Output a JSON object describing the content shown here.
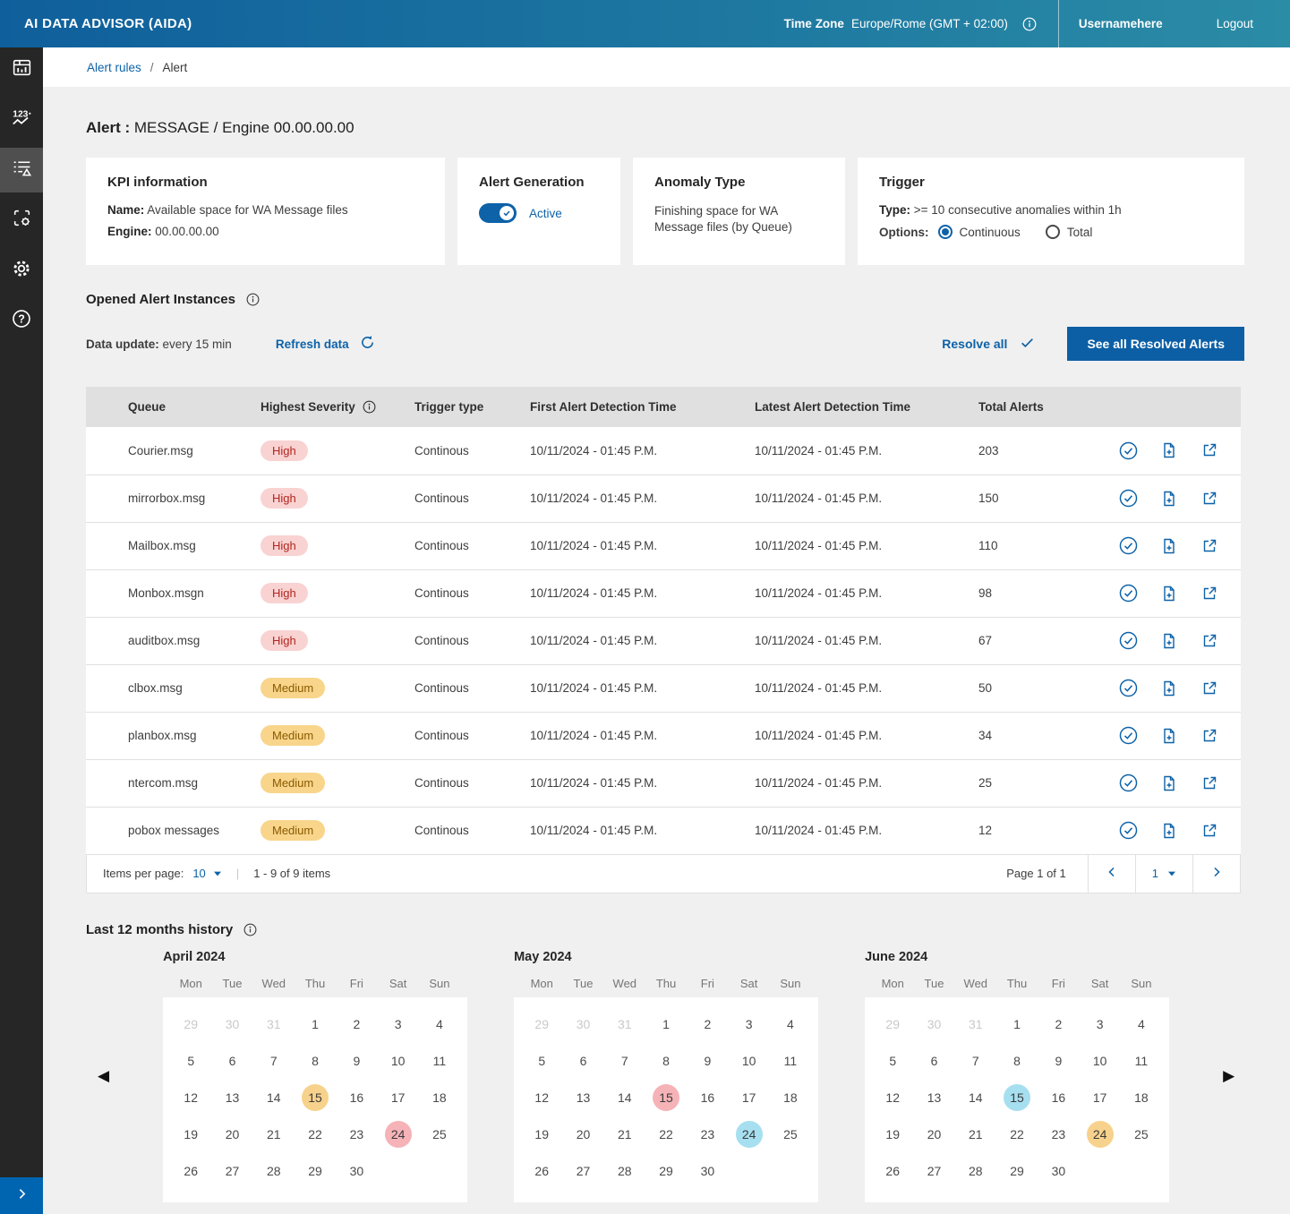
{
  "header": {
    "app_title": "AI DATA ADVISOR (AIDA)",
    "timezone_label": "Time Zone",
    "timezone_value": "Europe/Rome (GMT + 02:00)",
    "username": "Usernamehere",
    "logout_label": "Logout"
  },
  "sidebar": {
    "items": [
      {
        "name": "dashboard",
        "active": false
      },
      {
        "name": "kpi-trend",
        "active": false
      },
      {
        "name": "alert-rules",
        "active": true
      },
      {
        "name": "kpi-config",
        "active": false
      },
      {
        "name": "settings",
        "active": false
      },
      {
        "name": "help",
        "active": false
      }
    ]
  },
  "breadcrumb": {
    "parent": "Alert rules",
    "separator": "/",
    "current": "Alert"
  },
  "page": {
    "title_bold": "Alert :",
    "title_rest": "MESSAGE  / Engine 00.00.00.00"
  },
  "cards": {
    "kpi": {
      "title": "KPI information",
      "name_label": "Name:",
      "name_value": "Available space for WA Message files",
      "engine_label": "Engine:",
      "engine_value": "00.00.00.00"
    },
    "generation": {
      "title": "Alert Generation",
      "status_label": "Active"
    },
    "anomaly": {
      "title": "Anomaly Type",
      "description": "Finishing space for WA Message files (by Queue)"
    },
    "trigger": {
      "title": "Trigger",
      "type_label": "Type:",
      "type_value": ">=  10 consecutive anomalies within 1h",
      "options_label": "Options:",
      "options": [
        {
          "label": "Continuous",
          "selected": true
        },
        {
          "label": "Total",
          "selected": false
        }
      ]
    }
  },
  "alerts_section": {
    "title": "Opened Alert Instances",
    "data_update_label": "Data update:",
    "data_update_value": "every 15 min",
    "refresh_label": "Refresh data",
    "resolve_all_label": "Resolve all",
    "see_resolved_label": "See all Resolved Alerts",
    "table": {
      "columns": [
        "Queue",
        "Highest Severity",
        "Trigger type",
        "First Alert Detection Time",
        "Latest Alert Detection Time",
        "Total Alerts"
      ],
      "row_action_icons": [
        "resolve-check-icon",
        "report-file-icon",
        "open-external-icon"
      ],
      "rows": [
        {
          "queue": "Courier.msg",
          "severity": "High",
          "trigger": "Continous",
          "first": "10/11/2024 - 01:45 P.M.",
          "latest": "10/11/2024 - 01:45 P.M.",
          "total": "203"
        },
        {
          "queue": "mirrorbox.msg",
          "severity": "High",
          "trigger": "Continous",
          "first": "10/11/2024 - 01:45 P.M.",
          "latest": "10/11/2024 - 01:45 P.M.",
          "total": "150"
        },
        {
          "queue": "Mailbox.msg",
          "severity": "High",
          "trigger": "Continous",
          "first": "10/11/2024 - 01:45 P.M.",
          "latest": "10/11/2024 - 01:45 P.M.",
          "total": "110"
        },
        {
          "queue": "Monbox.msgn",
          "severity": "High",
          "trigger": "Continous",
          "first": "10/11/2024 - 01:45 P.M.",
          "latest": "10/11/2024 - 01:45 P.M.",
          "total": "98"
        },
        {
          "queue": "auditbox.msg",
          "severity": "High",
          "trigger": "Continous",
          "first": "10/11/2024 - 01:45 P.M.",
          "latest": "10/11/2024 - 01:45 P.M.",
          "total": "67"
        },
        {
          "queue": "clbox.msg",
          "severity": "Medium",
          "trigger": "Continous",
          "first": "10/11/2024 - 01:45 P.M.",
          "latest": "10/11/2024 - 01:45 P.M.",
          "total": "50"
        },
        {
          "queue": "planbox.msg",
          "severity": "Medium",
          "trigger": "Continous",
          "first": "10/11/2024 - 01:45 P.M.",
          "latest": "10/11/2024 - 01:45 P.M.",
          "total": "34"
        },
        {
          "queue": "ntercom.msg",
          "severity": "Medium",
          "trigger": "Continous",
          "first": "10/11/2024 - 01:45 P.M.",
          "latest": "10/11/2024 - 01:45 P.M.",
          "total": "25"
        },
        {
          "queue": "pobox messages",
          "severity": "Medium",
          "trigger": "Continous",
          "first": "10/11/2024 - 01:45 P.M.",
          "latest": "10/11/2024 - 01:45 P.M.",
          "total": "12"
        }
      ]
    },
    "pagination": {
      "items_per_page_label": "Items per page:",
      "items_per_page_value": "10",
      "range_text": "1 - 9 of 9 items",
      "page_text": "Page 1 of 1",
      "page_value": "1"
    }
  },
  "history": {
    "title": "Last 12 months history",
    "weekdays": [
      "Mon",
      "Tue",
      "Wed",
      "Thu",
      "Fri",
      "Sat",
      "Sun"
    ],
    "leading_gray_count": 3,
    "grid": [
      [
        "29",
        "30",
        "31",
        "1",
        "2",
        "3",
        "4"
      ],
      [
        "5",
        "6",
        "7",
        "8",
        "9",
        "10",
        "11"
      ],
      [
        "12",
        "13",
        "14",
        "15",
        "16",
        "17",
        "18"
      ],
      [
        "19",
        "20",
        "21",
        "22",
        "23",
        "24",
        "25"
      ],
      [
        "26",
        "27",
        "28",
        "29",
        "30",
        "",
        ""
      ]
    ],
    "months": [
      {
        "title": "April 2024",
        "highlights": {
          "15": "amber",
          "24": "pink"
        }
      },
      {
        "title": "May 2024",
        "highlights": {
          "15": "pink",
          "24": "blue"
        }
      },
      {
        "title": "June 2024",
        "highlights": {
          "15": "blue",
          "24": "amber"
        }
      }
    ]
  },
  "colors": {
    "accent_blue": "#0d62a8",
    "header_gradient_left": "#0f5f9c",
    "header_gradient_right": "#2b8ca6",
    "sidebar_bg": "#262626",
    "severity_high_bg": "#f9d2d2",
    "severity_high_text": "#b3261e",
    "severity_medium_bg": "#f8d58b",
    "severity_medium_text": "#8a5a00",
    "highlight_amber": "#f7d28c",
    "highlight_pink": "#f5b3b8",
    "highlight_blue": "#a6dff0"
  }
}
